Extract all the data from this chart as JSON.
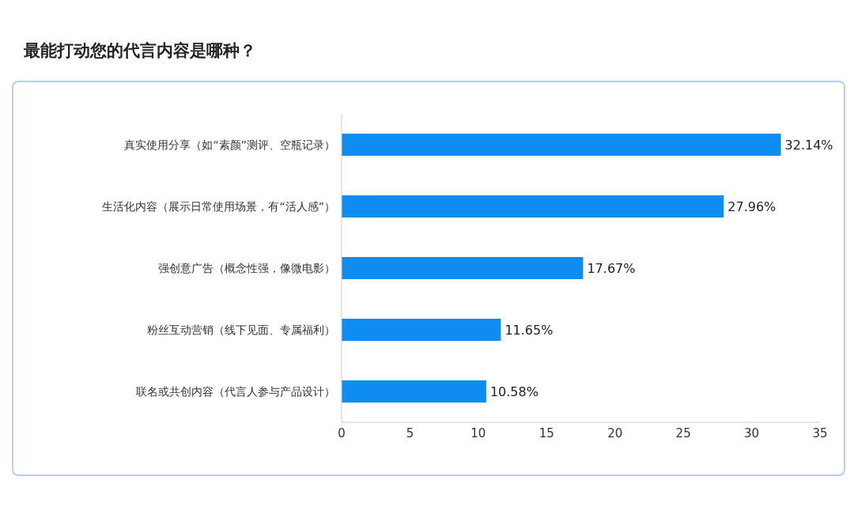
{
  "chart_data": {
    "type": "bar",
    "orientation": "horizontal",
    "title": "最能打动您的代言内容是哪种？",
    "categories": [
      "真实使用分享（如“素颜”测评、空瓶记录）",
      "生活化内容（展示日常使用场景，有“活人感”）",
      "强创意广告（概念性强，像微电影）",
      "粉丝互动营销（线下见面、专属福利）",
      "联名或共创内容（代言人参与产品设计）"
    ],
    "values": [
      32.14,
      27.96,
      17.67,
      11.65,
      10.58
    ],
    "value_labels": [
      "32.14%",
      "27.96%",
      "17.67%",
      "11.65%",
      "10.58%"
    ],
    "color": "#0f8cf0",
    "xlim": [
      0,
      35
    ],
    "xticks": [
      0,
      5,
      10,
      15,
      20,
      25,
      30,
      35
    ]
  }
}
